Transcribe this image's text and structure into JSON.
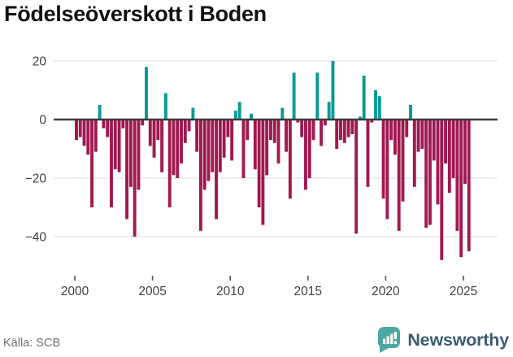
{
  "title": "Födelseöverskott i Boden",
  "source": "Källa: SCB",
  "branding": {
    "name": "Newsworthy"
  },
  "colors": {
    "positive": "#0a9a94",
    "negative": "#a01950",
    "zero_line": "#3b3b3b",
    "gridline": "#e3e3e3",
    "tick_mark": "#555555",
    "axis_text": "#404040",
    "title_text": "#111111",
    "source_text": "#707070",
    "logo_icon": "#4ba8a0",
    "logo_text": "#3e5c70"
  },
  "chart_data": {
    "type": "bar",
    "title": "Födelseöverskott i Boden",
    "xlabel": "",
    "ylabel": "",
    "frequency": "quarterly",
    "start": {
      "year": 2000,
      "quarter": 1
    },
    "end": {
      "year": 2025,
      "quarter": 2
    },
    "x_ticks": [
      2000,
      2005,
      2010,
      2015,
      2020,
      2025
    ],
    "y_ticks": [
      20,
      0,
      -20,
      -40
    ],
    "y_tick_labels": [
      "20",
      "0",
      "−20",
      "−40"
    ],
    "ylim": [
      -50,
      22
    ],
    "grid": true,
    "legend": false,
    "values": [
      -7,
      -6,
      -9,
      -12,
      -30,
      -11,
      5,
      -3,
      -6,
      -30,
      -17,
      -18,
      -3,
      -34,
      -23,
      -40,
      -24,
      -2,
      18,
      -9,
      -13,
      -7,
      -18,
      9,
      -30,
      -19,
      -20,
      -15,
      -8,
      -4,
      4,
      -11,
      -38,
      -24,
      -21,
      -18,
      -34,
      -18,
      -13,
      -6,
      -14,
      3,
      6,
      -20,
      -7,
      2,
      -17,
      -30,
      -36,
      -19,
      -7,
      -8,
      -15,
      4,
      -11,
      -27,
      16,
      -1,
      -6,
      -24,
      -20,
      -7,
      16,
      -9,
      -2,
      6,
      20,
      -10,
      -7,
      -8,
      -6,
      -5,
      -39,
      1,
      15,
      -23,
      -1,
      10,
      8,
      -27,
      -34,
      -7,
      -12,
      -38,
      -28,
      -6,
      5,
      -23,
      -11,
      -10,
      -37,
      -36,
      -14,
      -29,
      -48,
      -15,
      -25,
      -20,
      -38,
      -47,
      -22,
      -45
    ]
  }
}
